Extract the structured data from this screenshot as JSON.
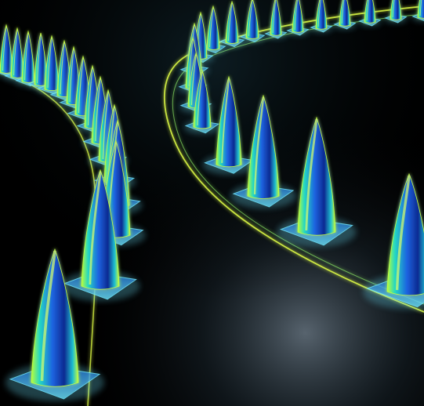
{
  "scene": {
    "subject": "glowing-cone-rows",
    "colors": {
      "background": "#000000",
      "floor": "#05090c",
      "floor_sheen": "#9fb5c8",
      "cone_edge": "#c8ff3a",
      "cone_mid": "#1fd1c8",
      "cone_body": "#1b4fd8",
      "cone_core": "#0a1f7a",
      "base_glow": "#6fe6ff",
      "track_line": "#e2ff45"
    }
  }
}
